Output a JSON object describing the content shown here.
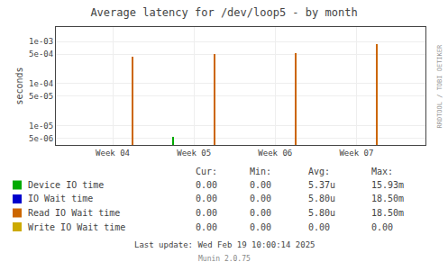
{
  "chart_data": {
    "type": "bar",
    "title": "Average latency for /dev/loop5 - by month",
    "ylabel": "seconds",
    "log": "y",
    "grid": true,
    "xlim": [
      3.3,
      7.85
    ],
    "xticks": [
      {
        "value": 4,
        "label": "Week 04"
      },
      {
        "value": 5,
        "label": "Week 05"
      },
      {
        "value": 6,
        "label": "Week 06"
      },
      {
        "value": 7,
        "label": "Week 07"
      }
    ],
    "ylim": [
      3.5e-06,
      0.0022
    ],
    "yticks": [
      {
        "value": 5e-06,
        "label": "5e-06"
      },
      {
        "value": 1e-05,
        "label": "1e-05"
      },
      {
        "value": 5e-05,
        "label": "5e-05"
      },
      {
        "value": 0.0001,
        "label": "1e-04"
      },
      {
        "value": 0.0005,
        "label": "5e-04"
      },
      {
        "value": 0.001,
        "label": "1e-03"
      }
    ],
    "legend_header": [
      "Cur:",
      "Min:",
      "Avg:",
      "Max:"
    ],
    "series": [
      {
        "name": "Device IO time",
        "color": "#00aa00",
        "x": [
          5
        ],
        "values": [
          5.5e-06
        ],
        "legend_values": [
          "0.00",
          "0.00",
          "5.37u",
          "15.93m"
        ]
      },
      {
        "name": "IO Wait time",
        "color": "#0000cc",
        "x": [],
        "values": [],
        "legend_values": [
          "0.00",
          "0.00",
          "5.80u",
          "18.50m"
        ]
      },
      {
        "name": "Read IO Wait time",
        "color": "#cc6600",
        "x": [
          4,
          5,
          6,
          7
        ],
        "values": [
          0.00043,
          0.0005,
          0.00052,
          0.00085
        ],
        "legend_values": [
          "0.00",
          "0.00",
          "5.80u",
          "18.50m"
        ]
      },
      {
        "name": "Write IO Wait time",
        "color": "#ccaa00",
        "x": [],
        "values": [],
        "legend_values": [
          "0.00",
          "0.00",
          "0.00",
          "0.00"
        ]
      }
    ],
    "annotations": [
      "Last update: Wed Feb 19 10:00:14 2025",
      "Munin 2.0.75",
      "RRDTOOL / TOBI OETIKER"
    ]
  }
}
